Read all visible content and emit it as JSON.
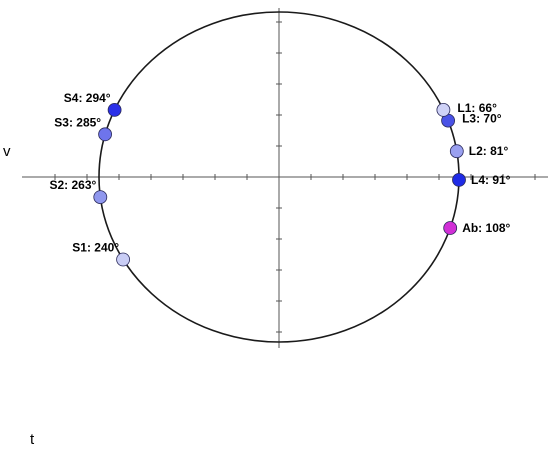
{
  "side_labels": {
    "left": "v",
    "bottom": "t"
  },
  "colors": {
    "circle": "#1a1a1a",
    "axis": "#555555",
    "point_stroke": "#2a2a5a"
  },
  "points": [
    {
      "id": "s1",
      "label": "S1: 240°",
      "angle": 240,
      "color": "#c9cdf5"
    },
    {
      "id": "s2",
      "label": "S2: 263°",
      "angle": 263,
      "color": "#8f97ee"
    },
    {
      "id": "s3",
      "label": "S3: 285°",
      "angle": 285,
      "color": "#6e74ec"
    },
    {
      "id": "s4",
      "label": "S4: 294°",
      "angle": 294,
      "color": "#2b30e8"
    },
    {
      "id": "ab",
      "label": "Ab: 108°",
      "angle": 108,
      "color": "#d12fd6"
    },
    {
      "id": "l4",
      "label": "L4: 91°",
      "angle": 91,
      "color": "#1f2be6"
    },
    {
      "id": "l2",
      "label": "L2: 81°",
      "angle": 81,
      "color": "#9aa0f0"
    },
    {
      "id": "l3",
      "label": "L3: 70°",
      "angle": 70,
      "color": "#4a52e6"
    },
    {
      "id": "l1",
      "label": "L1: 66°",
      "angle": 66,
      "color": "#cfd2f7"
    }
  ]
}
